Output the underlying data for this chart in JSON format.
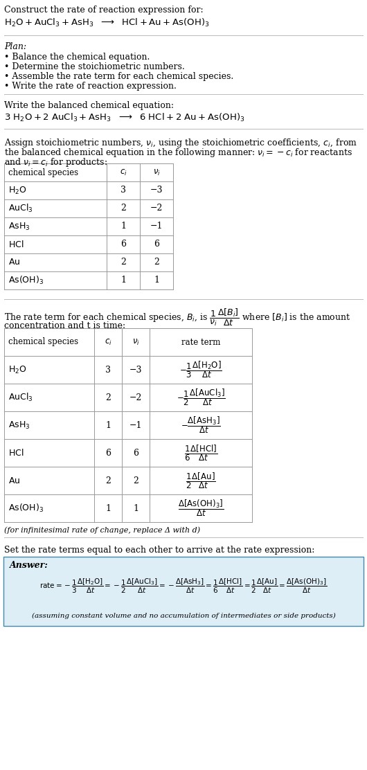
{
  "bg_color": "#ffffff",
  "text_color": "#000000",
  "title_line1": "Construct the rate of reaction expression for:",
  "plan_header": "Plan:",
  "plan_items": [
    "• Balance the chemical equation.",
    "• Determine the stoichiometric numbers.",
    "• Assemble the rate term for each chemical species.",
    "• Write the rate of reaction expression."
  ],
  "balanced_header": "Write the balanced chemical equation:",
  "table1_headers": [
    "chemical species",
    "c_i",
    "v_i"
  ],
  "table1_rows": [
    [
      "H_2O",
      "3",
      "−3"
    ],
    [
      "AuCl_3",
      "2",
      "−2"
    ],
    [
      "AsH_3",
      "1",
      "−1"
    ],
    [
      "HCl",
      "6",
      "6"
    ],
    [
      "Au",
      "2",
      "2"
    ],
    [
      "As(OH)_3",
      "1",
      "1"
    ]
  ],
  "table2_headers": [
    "chemical species",
    "c_i",
    "v_i",
    "rate term"
  ],
  "table2_rows": [
    [
      "H_2O",
      "3",
      "−3"
    ],
    [
      "AuCl_3",
      "2",
      "−2"
    ],
    [
      "AsH_3",
      "1",
      "−1"
    ],
    [
      "HCl",
      "6",
      "6"
    ],
    [
      "Au",
      "2",
      "2"
    ],
    [
      "As(OH)_3",
      "1",
      "1"
    ]
  ],
  "infinitesimal_note": "(for infinitesimal rate of change, replace Δ with d)",
  "set_equal_text": "Set the rate terms equal to each other to arrive at the rate expression:",
  "answer_box_color": "#ddeef6",
  "answer_border_color": "#4488aa",
  "answer_label": "Answer:",
  "answer_note": "(assuming constant volume and no accumulation of intermediates or side products)"
}
